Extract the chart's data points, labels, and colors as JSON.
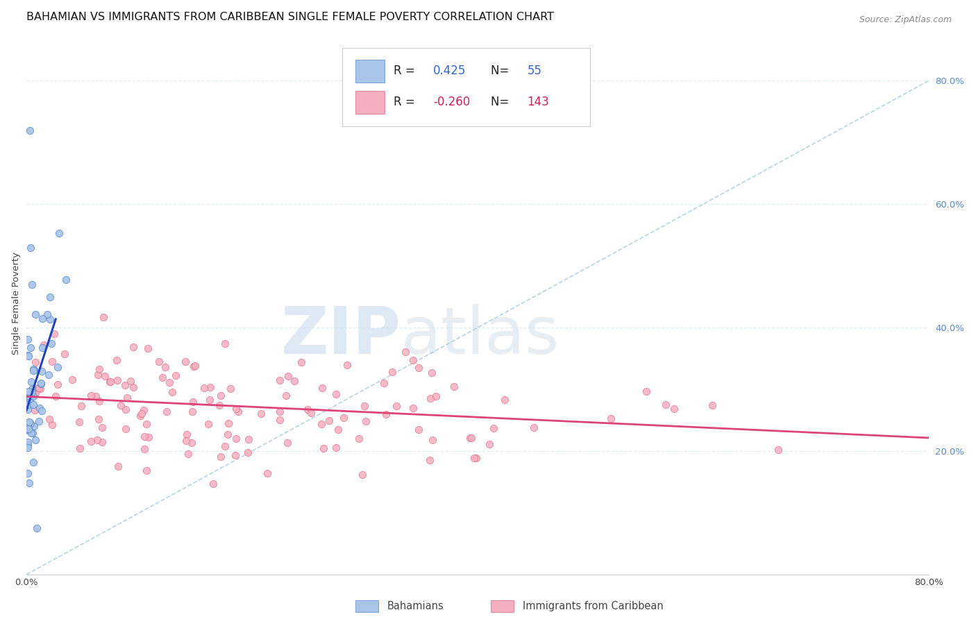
{
  "title": "BAHAMIAN VS IMMIGRANTS FROM CARIBBEAN SINGLE FEMALE POVERTY CORRELATION CHART",
  "source": "Source: ZipAtlas.com",
  "ylabel": "Single Female Poverty",
  "legend_label_1": "Bahamians",
  "legend_label_2": "Immigrants from Caribbean",
  "r1": 0.425,
  "n1": 55,
  "r2": -0.26,
  "n2": 143,
  "watermark_zip": "ZIP",
  "watermark_atlas": "atlas",
  "xlim": [
    0.0,
    0.8
  ],
  "ylim": [
    0.0,
    0.88
  ],
  "right_yticks": [
    0.2,
    0.4,
    0.6,
    0.8
  ],
  "right_ytick_labels": [
    "20.0%",
    "40.0%",
    "60.0%",
    "80.0%"
  ],
  "blue_scatter_color": "#a8c4e8",
  "blue_edge_color": "#5588cc",
  "pink_scatter_color": "#f4b0c0",
  "pink_edge_color": "#e06080",
  "blue_line_color": "#2244bb",
  "pink_line_color": "#dd4477",
  "dashed_line_color": "#aaccdd",
  "grid_color": "#ddeeee",
  "title_fontsize": 11.5,
  "source_fontsize": 9,
  "tick_fontsize": 9.5,
  "ylabel_fontsize": 9.5,
  "legend_fontsize": 12,
  "scatter_size": 55
}
